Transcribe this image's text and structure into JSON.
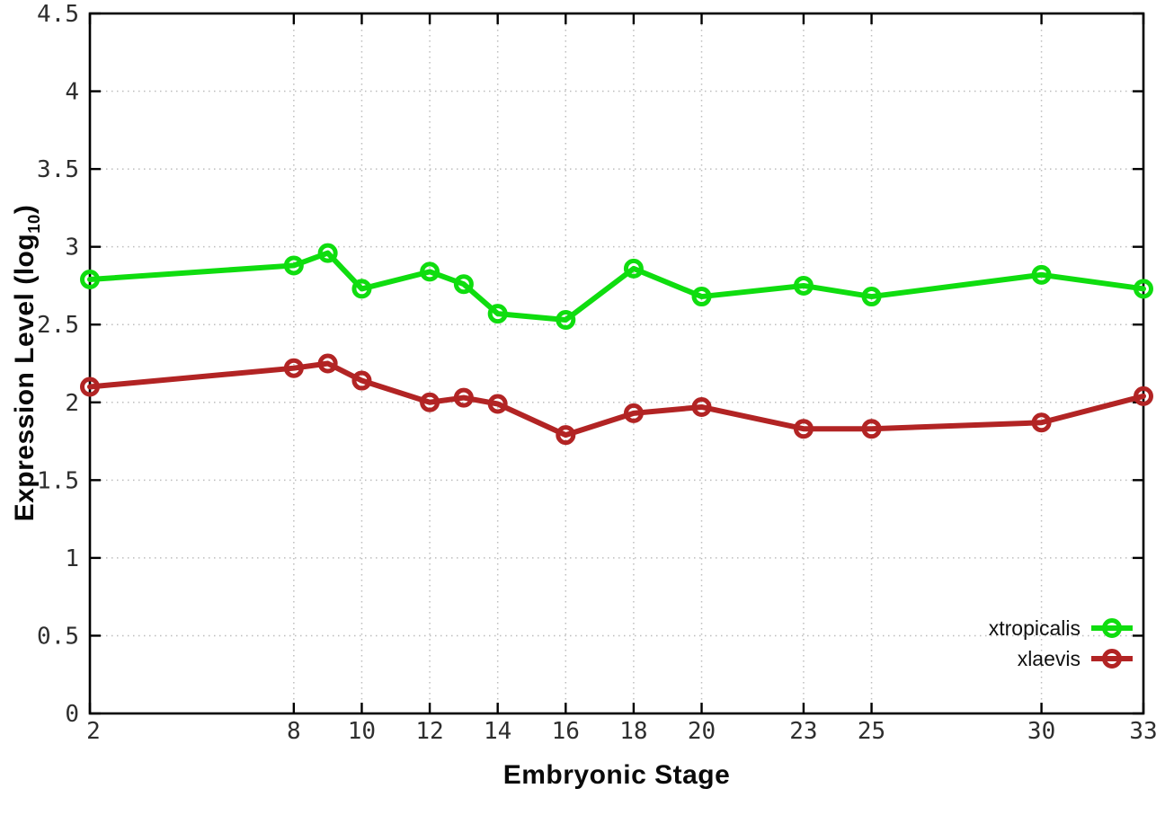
{
  "figure": {
    "x_axis_title": "Embryonic Stage",
    "y_axis_title_main": "Expression Level (log",
    "y_axis_title_sub": "10",
    "y_axis_title_close": ")"
  },
  "chart_data": {
    "type": "line",
    "title": "",
    "xlabel": "Embryonic Stage",
    "ylabel": "Expression Level (log10)",
    "xlim": [
      2,
      33
    ],
    "ylim": [
      0,
      4.5
    ],
    "grid": true,
    "legend_position": "bottom-right",
    "marker": "open-circle",
    "x": [
      2,
      8,
      9,
      10,
      12,
      13,
      14,
      16,
      18,
      20,
      23,
      25,
      30,
      33
    ],
    "series": [
      {
        "name": "xtropicalis",
        "color": "#0fdd0f",
        "values": [
          2.79,
          2.88,
          2.96,
          2.73,
          2.84,
          2.76,
          2.57,
          2.53,
          2.86,
          2.68,
          2.75,
          2.68,
          2.82,
          2.73
        ]
      },
      {
        "name": "xlaevis",
        "color": "#b22424",
        "values": [
          2.1,
          2.22,
          2.25,
          2.14,
          2.0,
          2.03,
          1.99,
          1.79,
          1.93,
          1.97,
          1.83,
          1.83,
          1.87,
          2.04
        ]
      }
    ],
    "x_ticks": {
      "values": [
        2,
        8,
        10,
        12,
        14,
        16,
        18,
        20,
        23,
        25,
        30,
        33
      ],
      "labels": [
        "2",
        "8",
        "10",
        "12",
        "14",
        "16",
        "18",
        "20",
        "23",
        "25",
        "30",
        "33"
      ]
    },
    "y_ticks": {
      "values": [
        0,
        0.5,
        1,
        1.5,
        2,
        2.5,
        3,
        3.5,
        4,
        4.5
      ],
      "labels": [
        "0",
        "0.5",
        "1",
        "1.5",
        "2",
        "2.5",
        "3",
        "3.5",
        "4",
        "4.5"
      ]
    },
    "style": {
      "grid_color": "#bdbdbd",
      "border_color": "#000000",
      "tick_label_color": "#2e2e2e",
      "background": "#ffffff"
    }
  }
}
